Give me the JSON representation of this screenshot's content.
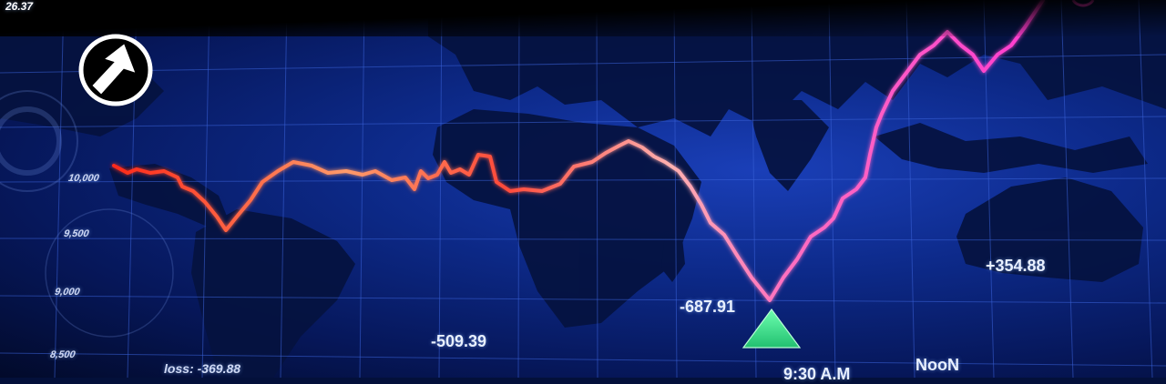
{
  "top_value": "26.37",
  "axis_labels": [
    "10,000",
    "9,500",
    "9,000",
    "8,500"
  ],
  "axis_loss_label": "loss: -369.88",
  "values": {
    "neg_india": "-687.91",
    "neg_africa": "-509.39",
    "pos_australia": "+354.88"
  },
  "time_partial": "9:30 A.M",
  "noon_label": "NooN",
  "colors": {
    "background": "#0d2a8a",
    "grid": "#2f56c9",
    "land": "#05123f",
    "line_start": "#ff3b2a",
    "line_mid": "#ffb08a",
    "line_end": "#ff3ad0",
    "triangle": "#3ee08a"
  },
  "icons": [
    "up-arrow-circle-icon",
    "marker-triangle-icon"
  ]
}
